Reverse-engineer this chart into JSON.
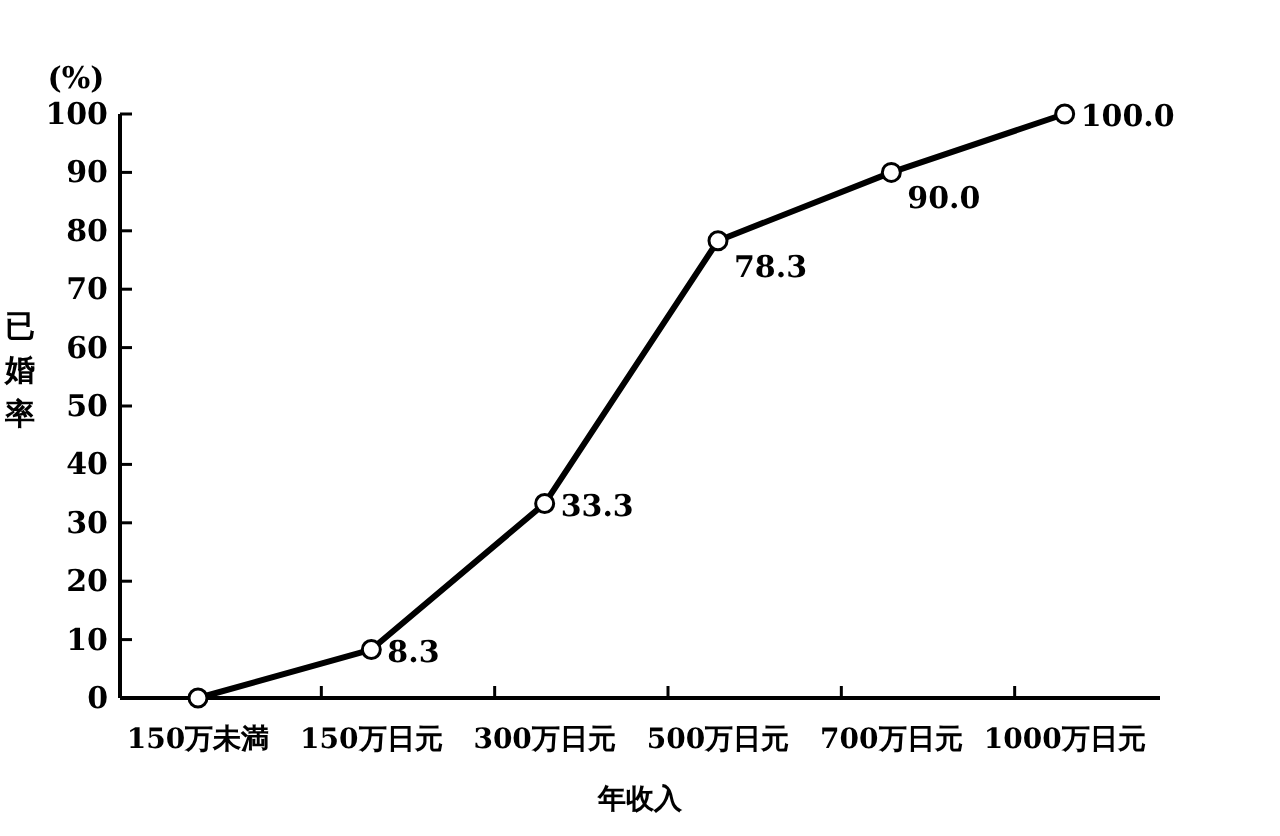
{
  "chart_data": {
    "type": "line",
    "categories": [
      "150万未満",
      "150万日元",
      "300万日元",
      "500万日元",
      "700万日元",
      "1000万日元"
    ],
    "values": [
      0,
      8.3,
      33.3,
      78.3,
      90.0,
      100.0
    ],
    "value_labels": [
      null,
      "8.3",
      "33.3",
      "78.3",
      "90.0",
      "100.0"
    ],
    "color": "#000000",
    "marker": "circle",
    "line_style": "solid",
    "ylim": [
      0,
      100
    ],
    "yticks": [
      0,
      10,
      20,
      30,
      40,
      50,
      60,
      70,
      80,
      90,
      100
    ],
    "xlabel": "年收入",
    "ylabel": "已婚率",
    "annotations": [
      "(%)"
    ]
  }
}
